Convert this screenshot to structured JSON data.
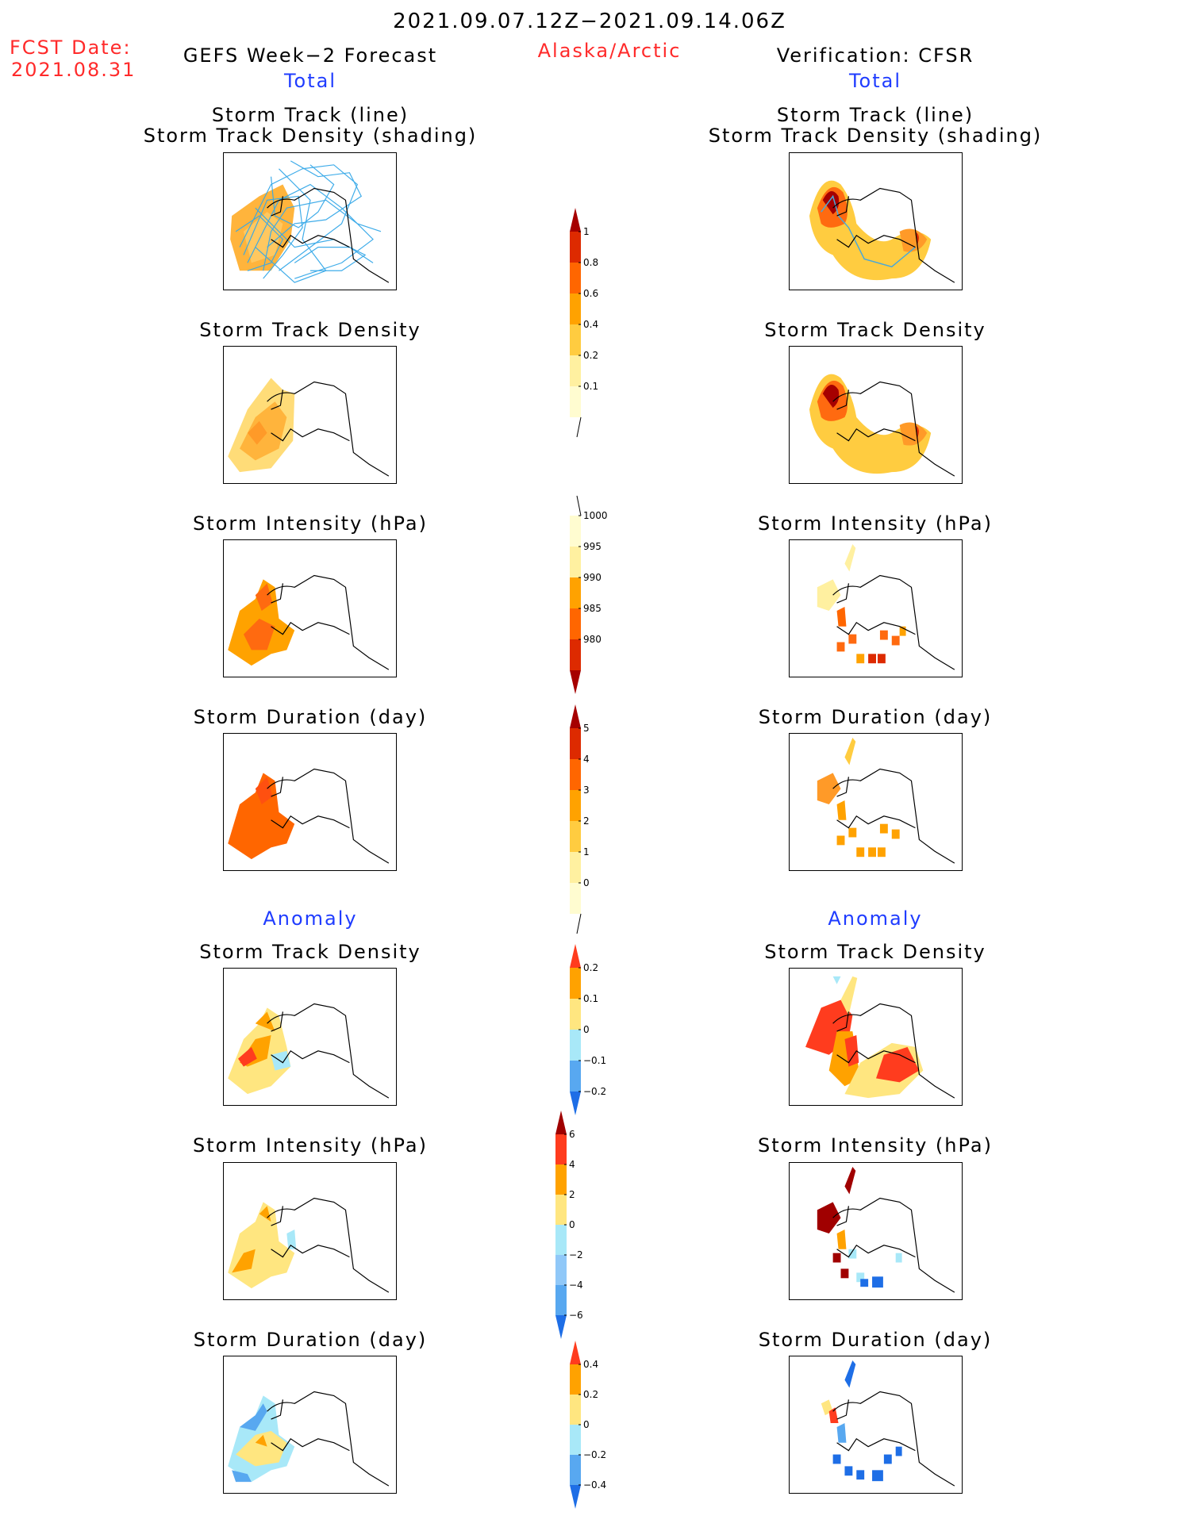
{
  "header": {
    "period": "2021.09.07.12Z−2021.09.14.06Z",
    "fcst_label": "FCST Date:",
    "fcst_date": "2021.08.31",
    "left_title": "GEFS Week−2 Forecast",
    "region": "Alaska/Arctic",
    "right_title": "Verification: CFSR"
  },
  "sections": {
    "total": "Total",
    "anomaly": "Anomaly"
  },
  "panels": {
    "track_line": "Storm Track (line)",
    "track_shading": "Storm Track Density (shading)",
    "track_density": "Storm Track Density",
    "intensity": "Storm Intensity (hPa)",
    "duration": "Storm Duration (day)"
  },
  "colorbars": {
    "density_total": {
      "labels": [
        "1",
        "0.8",
        "0.6",
        "0.4",
        "0.2",
        "0.1"
      ],
      "colors": [
        "#a60000",
        "#dd2a00",
        "#ff6600",
        "#ffa200",
        "#ffcc40",
        "#fff0a0",
        "#fffcd0"
      ]
    },
    "intensity_total": {
      "labels": [
        "1000",
        "995",
        "990",
        "985",
        "980"
      ],
      "colors": [
        "#fffcd0",
        "#fff0a0",
        "#ffa200",
        "#ff6600",
        "#dd2a00",
        "#a60000"
      ]
    },
    "duration_total": {
      "labels": [
        "5",
        "4",
        "3",
        "2",
        "1",
        "0"
      ],
      "colors": [
        "#a60000",
        "#dd2a00",
        "#ff6600",
        "#ffa200",
        "#ffcc40",
        "#fff0a0",
        "#fffcd0"
      ]
    },
    "density_anom": {
      "labels": [
        "0.2",
        "0.1",
        "0",
        "−0.1",
        "−0.2"
      ],
      "colors": [
        "#ff3c1e",
        "#ffa200",
        "#ffe680",
        "#a8e8f8",
        "#58a8f0",
        "#1e6ee6"
      ]
    },
    "intensity_anom": {
      "labels": [
        "6",
        "4",
        "2",
        "0",
        "−2",
        "−4",
        "−6"
      ],
      "colors": [
        "#a00000",
        "#ff3c1e",
        "#ffa200",
        "#ffe680",
        "#a8e8f8",
        "#90c8f8",
        "#58a8f0",
        "#1e6ee6"
      ]
    },
    "duration_anom": {
      "labels": [
        "0.4",
        "0.2",
        "0",
        "−0.2",
        "−0.4"
      ],
      "colors": [
        "#ff3c1e",
        "#ffa200",
        "#ffe680",
        "#a8e8f8",
        "#58a8f0",
        "#1e6ee6"
      ]
    }
  }
}
